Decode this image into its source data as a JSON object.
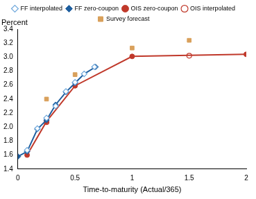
{
  "chart_data": {
    "type": "line",
    "xlabel": "Time-to-maturity (Actual/365)",
    "ylabel": "Percent",
    "xlim": [
      0,
      2
    ],
    "xticks": [
      0,
      0.5,
      1,
      1.5,
      2
    ],
    "ylim": [
      1.4,
      3.4
    ],
    "yticks": [
      1.4,
      1.6,
      1.8,
      {
        "value": 2,
        "label": "2.0"
      },
      2.2,
      2.4,
      2.6,
      2.8,
      {
        "value": 3,
        "label": "3.0"
      },
      3.2,
      3.4
    ],
    "grid": false,
    "legend": "top",
    "series": [
      {
        "name": "FF interpolated",
        "color": "#6fa8dc",
        "marker": "open_diamond",
        "line_style": "none",
        "x": [
          0.08,
          0.17,
          0.25,
          0.33,
          0.42,
          0.5,
          0.58,
          0.67
        ],
        "values": [
          1.67,
          1.98,
          2.13,
          2.3,
          2.51,
          2.64,
          2.76,
          2.86
        ]
      },
      {
        "name": "FF zero-coupon",
        "color": "#1f5f9f",
        "marker": "diamond",
        "line_style": "solid",
        "x": [
          0,
          0.08,
          0.17,
          0.25,
          0.33,
          0.42,
          0.5,
          0.58,
          0.68
        ],
        "values": [
          1.58,
          1.65,
          1.97,
          2.1,
          2.32,
          2.5,
          2.63,
          2.76,
          2.86
        ]
      },
      {
        "name": "OIS zero-coupon",
        "color": "#c0392b",
        "marker": "circle",
        "line_style": "solid",
        "x": [
          0.08,
          0.25,
          0.5,
          1,
          2
        ],
        "values": [
          1.6,
          2.08,
          2.59,
          3.01,
          3.04
        ]
      },
      {
        "name": "OIS interpolated",
        "color": "#c0392b",
        "marker": "open_circle",
        "line_style": "none",
        "x": [
          0.25,
          1.5
        ],
        "values": [
          2.07,
          3.02
        ]
      },
      {
        "name": "Survey forecast",
        "color": "#d9a05b",
        "marker": "square",
        "line_style": "none",
        "x": [
          0.25,
          0.5,
          1,
          1.5
        ],
        "values": [
          2.4,
          2.75,
          3.13,
          3.24
        ]
      }
    ]
  }
}
